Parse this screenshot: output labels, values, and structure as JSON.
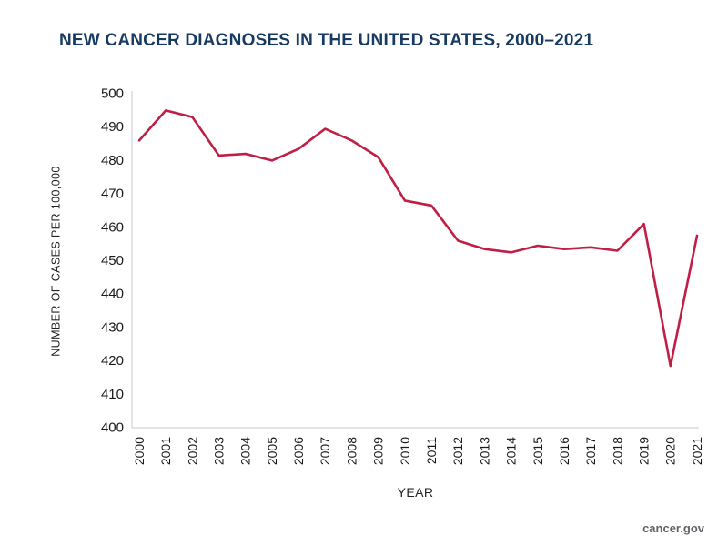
{
  "title": "NEW CANCER DIAGNOSES IN THE UNITED STATES, 2000–2021",
  "footer": "cancer.gov",
  "colors": {
    "title": "#173a63",
    "line": "#c01f45",
    "axis": "#c4c8cc",
    "tick_text": "#1a1a1a"
  },
  "chart_data": {
    "type": "line",
    "title": "NEW CANCER DIAGNOSES IN THE UNITED STATES, 2000–2021",
    "xlabel": "YEAR",
    "ylabel": "NUMBER OF CASES PER 100,000",
    "categories": [
      "2000",
      "2001",
      "2002",
      "2003",
      "2004",
      "2005",
      "2006",
      "2007",
      "2008",
      "2009",
      "2010",
      "2011",
      "2012",
      "2013",
      "2014",
      "2015",
      "2016",
      "2017",
      "2018",
      "2019",
      "2020",
      "2021"
    ],
    "values": [
      486,
      495,
      493,
      481.5,
      482,
      480,
      483.5,
      489.5,
      486,
      481,
      468,
      466.5,
      456,
      453.5,
      452.5,
      454.5,
      453.5,
      454,
      453,
      461,
      418.5,
      457.5
    ],
    "ylim": [
      400,
      500
    ],
    "yticks": [
      400,
      410,
      420,
      430,
      440,
      450,
      460,
      470,
      480,
      490,
      500
    ],
    "grid": false,
    "legend": "none",
    "line_color": "#c01f45"
  }
}
